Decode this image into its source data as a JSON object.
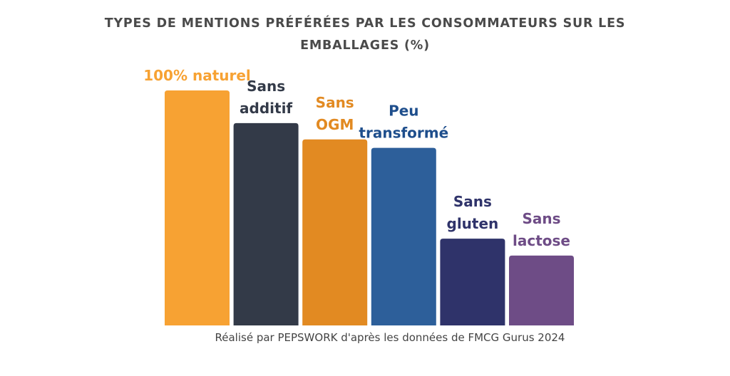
{
  "chart_data": {
    "type": "bar",
    "title": "TYPES DE MENTIONS PRÉFÉRÉES PAR LES CONSOMMATEURS SUR LES EMBALLAGES (%)",
    "categories": [
      "100% naturel",
      "Sans additif",
      "Sans OGM",
      "Peu transformé",
      "Sans gluten",
      "Sans lactose"
    ],
    "label_lines": [
      [
        "100% naturel"
      ],
      [
        "Sans",
        "additif"
      ],
      [
        "Sans",
        "OGM"
      ],
      [
        "Peu",
        "transformé"
      ],
      [
        "Sans",
        "gluten"
      ],
      [
        "Sans",
        "lactose"
      ]
    ],
    "values": [
      36.0,
      31.0,
      28.5,
      27.2,
      13.3,
      10.7
    ],
    "colors": [
      "#F7A233",
      "#333A48",
      "#E28A22",
      "#2D5F9A",
      "#2F336A",
      "#6E4C86"
    ],
    "label_colors": [
      "#F7A233",
      "#333A48",
      "#E28A22",
      "#1E4E8C",
      "#2F336A",
      "#6E4C86"
    ],
    "ylim": [
      0,
      36
    ],
    "xlabel": "",
    "ylabel": "",
    "grid": false,
    "legend": "none"
  },
  "source": "Réalisé par PEPSWORK d'après les données de FMCG Gurus 2024"
}
